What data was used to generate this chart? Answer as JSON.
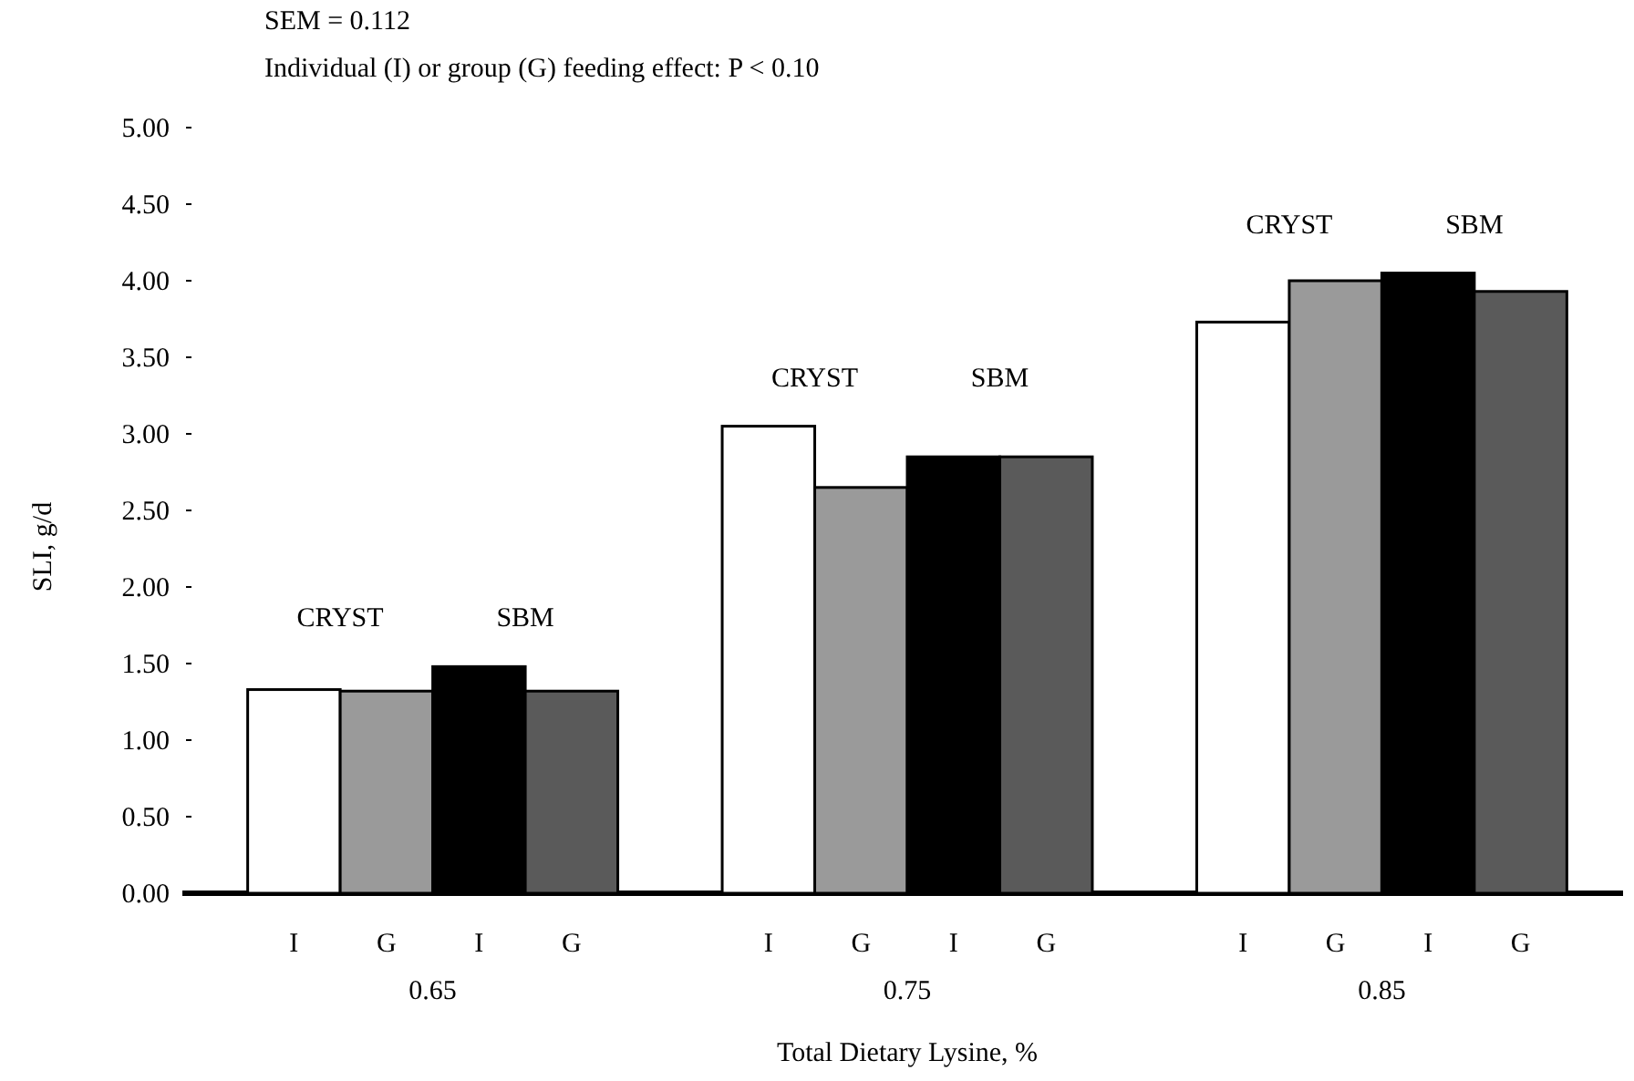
{
  "chart_data": {
    "type": "bar",
    "xlabel": "Total Dietary Lysine, %",
    "ylabel": "SLI, g/d",
    "categories": [
      "0.65",
      "0.75",
      "0.85"
    ],
    "series": [
      {
        "name": "I",
        "color": "#ffffff",
        "values": [
          1.33,
          3.05,
          3.73
        ]
      },
      {
        "name": "G",
        "color": "#9a9a9a",
        "values": [
          1.32,
          2.65,
          4.0
        ]
      },
      {
        "name": "I",
        "color": "#000000",
        "values": [
          1.48,
          2.85,
          4.05
        ]
      },
      {
        "name": "G",
        "color": "#5a5a5a",
        "values": [
          1.32,
          2.85,
          3.93
        ]
      }
    ],
    "ylim": [
      0,
      5
    ],
    "yticks": [
      {
        "value": 0,
        "label": "0.00"
      },
      {
        "value": 0.5,
        "label": "0.50"
      },
      {
        "value": 1,
        "label": "1.00"
      },
      {
        "value": 1.5,
        "label": "1.50"
      },
      {
        "value": 2,
        "label": "2.00"
      },
      {
        "value": 2.5,
        "label": "2.50"
      },
      {
        "value": 3,
        "label": "3.00"
      },
      {
        "value": 3.5,
        "label": "3.50"
      },
      {
        "value": 4,
        "label": "4.00"
      },
      {
        "value": 4.5,
        "label": "4.50"
      },
      {
        "value": 5,
        "label": "5.00"
      }
    ],
    "grid": false,
    "annotations": [
      "SEM = 0.112",
      "Individual (I) or group (G) feeding effect: P < 0.10",
      "CRYST",
      "SBM",
      "CRYST",
      "SBM",
      "CRYST",
      "SBM"
    ]
  }
}
